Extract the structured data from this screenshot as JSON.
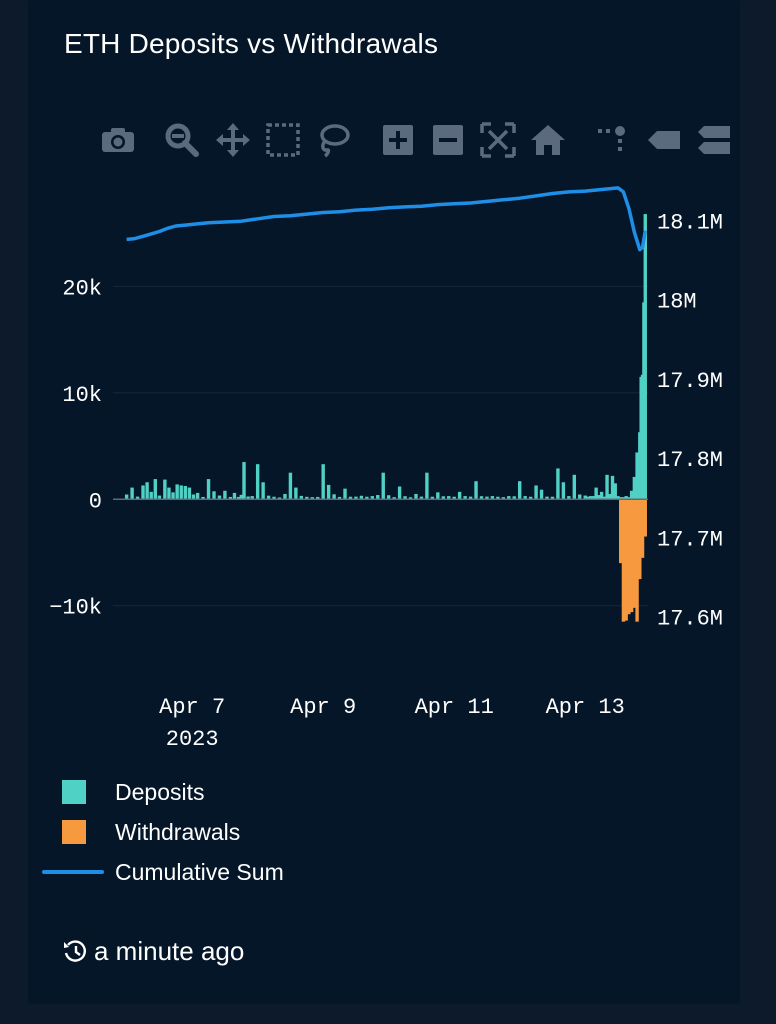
{
  "card": {
    "title": "ETH Deposits vs Withdrawals"
  },
  "toolbar": {
    "buttons": [
      {
        "name": "camera-icon",
        "label": "Download plot as png"
      },
      {
        "name": "zoom-icon",
        "label": "Zoom"
      },
      {
        "name": "pan-icon",
        "label": "Pan"
      },
      {
        "name": "box-select-icon",
        "label": "Box Select"
      },
      {
        "name": "lasso-select-icon",
        "label": "Lasso Select"
      },
      {
        "name": "zoom-in-icon",
        "label": "Zoom in"
      },
      {
        "name": "zoom-out-icon",
        "label": "Zoom out"
      },
      {
        "name": "autoscale-icon",
        "label": "Autoscale"
      },
      {
        "name": "reset-axes-icon",
        "label": "Reset axes"
      },
      {
        "name": "spike-lines-icon",
        "label": "Toggle Spike Lines"
      },
      {
        "name": "hover-closest-icon",
        "label": "Show closest data on hover"
      },
      {
        "name": "hover-compare-icon",
        "label": "Compare data on hover"
      }
    ]
  },
  "colors": {
    "deposits": "#4fd1c5",
    "withdrawals": "#f6993f",
    "cumulative": "#1f8ee6",
    "background": "#051629",
    "grid": "#15283d"
  },
  "chart_data": {
    "type": "bar",
    "title": "ETH Deposits vs Withdrawals",
    "x_ticks": [
      {
        "label": "Apr 7",
        "sublabel": "2023",
        "date": "2023-04-07"
      },
      {
        "label": "Apr 9",
        "date": "2023-04-09"
      },
      {
        "label": "Apr 11",
        "date": "2023-04-11"
      },
      {
        "label": "Apr 13",
        "date": "2023-04-13"
      }
    ],
    "xlim": [
      "2023-04-05T19:00",
      "2023-04-13T23:00"
    ],
    "y_left": {
      "ticks": [
        20000,
        10000,
        0,
        -10000
      ],
      "tick_labels": [
        "20k",
        "10k",
        "0",
        "−10k"
      ],
      "range": [
        -12000,
        30000
      ]
    },
    "y_right": {
      "ticks": [
        18100000,
        18000000,
        17900000,
        17800000,
        17700000,
        17600000
      ],
      "tick_labels": [
        "18.1M",
        "18M",
        "17.9M",
        "17.8M",
        "17.7M",
        "17.6M"
      ],
      "range": [
        17587000,
        18151000
      ]
    },
    "series": [
      {
        "name": "Deposits",
        "type": "bar",
        "axis": "left",
        "points": [
          [
            "2023-04-06T00:00",
            450
          ],
          [
            "2023-04-06T02:00",
            1100
          ],
          [
            "2023-04-06T04:00",
            250
          ],
          [
            "2023-04-06T06:00",
            1300
          ],
          [
            "2023-04-06T07:30",
            1600
          ],
          [
            "2023-04-06T09:00",
            700
          ],
          [
            "2023-04-06T10:30",
            1900
          ],
          [
            "2023-04-06T12:00",
            350
          ],
          [
            "2023-04-06T14:00",
            1850
          ],
          [
            "2023-04-06T15:30",
            1100
          ],
          [
            "2023-04-06T17:00",
            650
          ],
          [
            "2023-04-06T18:30",
            1400
          ],
          [
            "2023-04-06T20:00",
            1300
          ],
          [
            "2023-04-06T21:30",
            1250
          ],
          [
            "2023-04-06T23:00",
            1100
          ],
          [
            "2023-04-07T00:30",
            450
          ],
          [
            "2023-04-07T02:00",
            600
          ],
          [
            "2023-04-07T04:00",
            220
          ],
          [
            "2023-04-07T06:00",
            1900
          ],
          [
            "2023-04-07T08:00",
            750
          ],
          [
            "2023-04-07T10:00",
            350
          ],
          [
            "2023-04-07T12:00",
            800
          ],
          [
            "2023-04-07T14:00",
            220
          ],
          [
            "2023-04-07T15:30",
            600
          ],
          [
            "2023-04-07T17:00",
            220
          ],
          [
            "2023-04-07T18:00",
            420
          ],
          [
            "2023-04-07T19:00",
            3500
          ],
          [
            "2023-04-07T20:30",
            260
          ],
          [
            "2023-04-07T22:00",
            300
          ],
          [
            "2023-04-08T00:00",
            3300
          ],
          [
            "2023-04-08T02:00",
            1600
          ],
          [
            "2023-04-08T04:00",
            340
          ],
          [
            "2023-04-08T06:00",
            240
          ],
          [
            "2023-04-08T08:00",
            170
          ],
          [
            "2023-04-08T10:00",
            500
          ],
          [
            "2023-04-08T12:00",
            2500
          ],
          [
            "2023-04-08T14:00",
            1100
          ],
          [
            "2023-04-08T16:00",
            320
          ],
          [
            "2023-04-08T18:00",
            230
          ],
          [
            "2023-04-08T20:00",
            200
          ],
          [
            "2023-04-08T22:00",
            220
          ],
          [
            "2023-04-09T00:00",
            3300
          ],
          [
            "2023-04-09T02:00",
            1350
          ],
          [
            "2023-04-09T04:00",
            470
          ],
          [
            "2023-04-09T06:00",
            220
          ],
          [
            "2023-04-09T08:00",
            1000
          ],
          [
            "2023-04-09T10:00",
            240
          ],
          [
            "2023-04-09T12:00",
            250
          ],
          [
            "2023-04-09T14:00",
            330
          ],
          [
            "2023-04-09T16:00",
            240
          ],
          [
            "2023-04-09T18:00",
            300
          ],
          [
            "2023-04-09T20:00",
            400
          ],
          [
            "2023-04-09T22:00",
            2500
          ],
          [
            "2023-04-10T00:00",
            380
          ],
          [
            "2023-04-10T02:00",
            200
          ],
          [
            "2023-04-10T04:00",
            1200
          ],
          [
            "2023-04-10T06:00",
            290
          ],
          [
            "2023-04-10T08:00",
            190
          ],
          [
            "2023-04-10T10:00",
            500
          ],
          [
            "2023-04-10T12:00",
            250
          ],
          [
            "2023-04-10T14:00",
            2500
          ],
          [
            "2023-04-10T16:00",
            240
          ],
          [
            "2023-04-10T18:00",
            650
          ],
          [
            "2023-04-10T20:00",
            280
          ],
          [
            "2023-04-10T22:00",
            300
          ],
          [
            "2023-04-11T00:00",
            240
          ],
          [
            "2023-04-11T02:00",
            700
          ],
          [
            "2023-04-11T04:00",
            300
          ],
          [
            "2023-04-11T06:00",
            250
          ],
          [
            "2023-04-11T08:00",
            1700
          ],
          [
            "2023-04-11T10:00",
            290
          ],
          [
            "2023-04-11T12:00",
            250
          ],
          [
            "2023-04-11T14:00",
            300
          ],
          [
            "2023-04-11T16:00",
            240
          ],
          [
            "2023-04-11T18:00",
            200
          ],
          [
            "2023-04-11T20:00",
            300
          ],
          [
            "2023-04-11T22:00",
            280
          ],
          [
            "2023-04-12T00:00",
            1700
          ],
          [
            "2023-04-12T02:00",
            300
          ],
          [
            "2023-04-12T04:00",
            240
          ],
          [
            "2023-04-12T06:00",
            1300
          ],
          [
            "2023-04-12T08:00",
            900
          ],
          [
            "2023-04-12T10:00",
            250
          ],
          [
            "2023-04-12T12:00",
            240
          ],
          [
            "2023-04-12T14:00",
            2900
          ],
          [
            "2023-04-12T16:00",
            1600
          ],
          [
            "2023-04-12T18:00",
            300
          ],
          [
            "2023-04-12T20:00",
            2300
          ],
          [
            "2023-04-12T22:00",
            450
          ],
          [
            "2023-04-13T00:00",
            350
          ],
          [
            "2023-04-13T01:00",
            250
          ],
          [
            "2023-04-13T02:00",
            300
          ],
          [
            "2023-04-13T03:00",
            300
          ],
          [
            "2023-04-13T04:00",
            1100
          ],
          [
            "2023-04-13T05:00",
            400
          ],
          [
            "2023-04-13T06:00",
            700
          ],
          [
            "2023-04-13T07:00",
            250
          ],
          [
            "2023-04-13T08:00",
            2300
          ],
          [
            "2023-04-13T09:00",
            500
          ],
          [
            "2023-04-13T10:00",
            2200
          ],
          [
            "2023-04-13T11:00",
            1500
          ],
          [
            "2023-04-13T12:00",
            300
          ],
          [
            "2023-04-13T13:00",
            200
          ],
          [
            "2023-04-13T14:00",
            200
          ],
          [
            "2023-04-13T15:00",
            300
          ],
          [
            "2023-04-13T16:00",
            200
          ],
          [
            "2023-04-13T17:00",
            800
          ],
          [
            "2023-04-13T18:00",
            2100
          ],
          [
            "2023-04-13T19:00",
            4400
          ],
          [
            "2023-04-13T20:00",
            6300
          ],
          [
            "2023-04-13T20:30",
            11500
          ],
          [
            "2023-04-13T21:00",
            11700
          ],
          [
            "2023-04-13T21:30",
            18500
          ],
          [
            "2023-04-13T22:00",
            26800
          ]
        ]
      },
      {
        "name": "Withdrawals",
        "type": "bar",
        "axis": "left",
        "points": [
          [
            "2023-04-13T13:00",
            -6000
          ],
          [
            "2023-04-13T14:00",
            -11500
          ],
          [
            "2023-04-13T15:00",
            -11400
          ],
          [
            "2023-04-13T16:00",
            -10800
          ],
          [
            "2023-04-13T17:00",
            -10600
          ],
          [
            "2023-04-13T18:00",
            -10200
          ],
          [
            "2023-04-13T19:00",
            -11500
          ],
          [
            "2023-04-13T20:00",
            -7500
          ],
          [
            "2023-04-13T21:00",
            -5500
          ],
          [
            "2023-04-13T22:00",
            -3500
          ]
        ]
      },
      {
        "name": "Cumulative Sum",
        "type": "line",
        "axis": "right",
        "points": [
          [
            "2023-04-06T00:00",
            18076000
          ],
          [
            "2023-04-06T03:00",
            18077000
          ],
          [
            "2023-04-06T06:00",
            18080000
          ],
          [
            "2023-04-06T09:00",
            18083000
          ],
          [
            "2023-04-06T12:00",
            18086000
          ],
          [
            "2023-04-06T15:00",
            18090000
          ],
          [
            "2023-04-06T18:00",
            18093000
          ],
          [
            "2023-04-06T21:00",
            18094000
          ],
          [
            "2023-04-07T00:00",
            18095000
          ],
          [
            "2023-04-07T06:00",
            18097000
          ],
          [
            "2023-04-07T12:00",
            18098000
          ],
          [
            "2023-04-07T18:00",
            18099000
          ],
          [
            "2023-04-08T00:00",
            18102000
          ],
          [
            "2023-04-08T06:00",
            18105000
          ],
          [
            "2023-04-08T12:00",
            18106000
          ],
          [
            "2023-04-08T18:00",
            18108000
          ],
          [
            "2023-04-09T00:00",
            18110000
          ],
          [
            "2023-04-09T06:00",
            18111000
          ],
          [
            "2023-04-09T12:00",
            18113000
          ],
          [
            "2023-04-09T18:00",
            18114000
          ],
          [
            "2023-04-10T00:00",
            18116000
          ],
          [
            "2023-04-10T06:00",
            18117000
          ],
          [
            "2023-04-10T12:00",
            18118000
          ],
          [
            "2023-04-10T18:00",
            18120000
          ],
          [
            "2023-04-11T00:00",
            18121000
          ],
          [
            "2023-04-11T06:00",
            18122000
          ],
          [
            "2023-04-11T12:00",
            18124000
          ],
          [
            "2023-04-11T18:00",
            18126000
          ],
          [
            "2023-04-12T00:00",
            18128000
          ],
          [
            "2023-04-12T06:00",
            18131000
          ],
          [
            "2023-04-12T12:00",
            18134000
          ],
          [
            "2023-04-12T18:00",
            18136000
          ],
          [
            "2023-04-13T00:00",
            18137000
          ],
          [
            "2023-04-13T06:00",
            18139000
          ],
          [
            "2023-04-13T12:00",
            18141000
          ],
          [
            "2023-04-13T14:00",
            18136000
          ],
          [
            "2023-04-13T16:00",
            18115000
          ],
          [
            "2023-04-13T18:00",
            18085000
          ],
          [
            "2023-04-13T20:00",
            18063000
          ],
          [
            "2023-04-13T21:00",
            18066000
          ],
          [
            "2023-04-13T22:00",
            18087000
          ]
        ]
      }
    ],
    "legend": {
      "placement": "bottom-left",
      "entries": [
        "Deposits",
        "Withdrawals",
        "Cumulative Sum"
      ]
    },
    "grid": true
  },
  "legend": {
    "deposits": "Deposits",
    "withdrawals": "Withdrawals",
    "cumulative": "Cumulative Sum"
  },
  "footer": {
    "icon": "history-icon",
    "updated": "a minute ago"
  }
}
